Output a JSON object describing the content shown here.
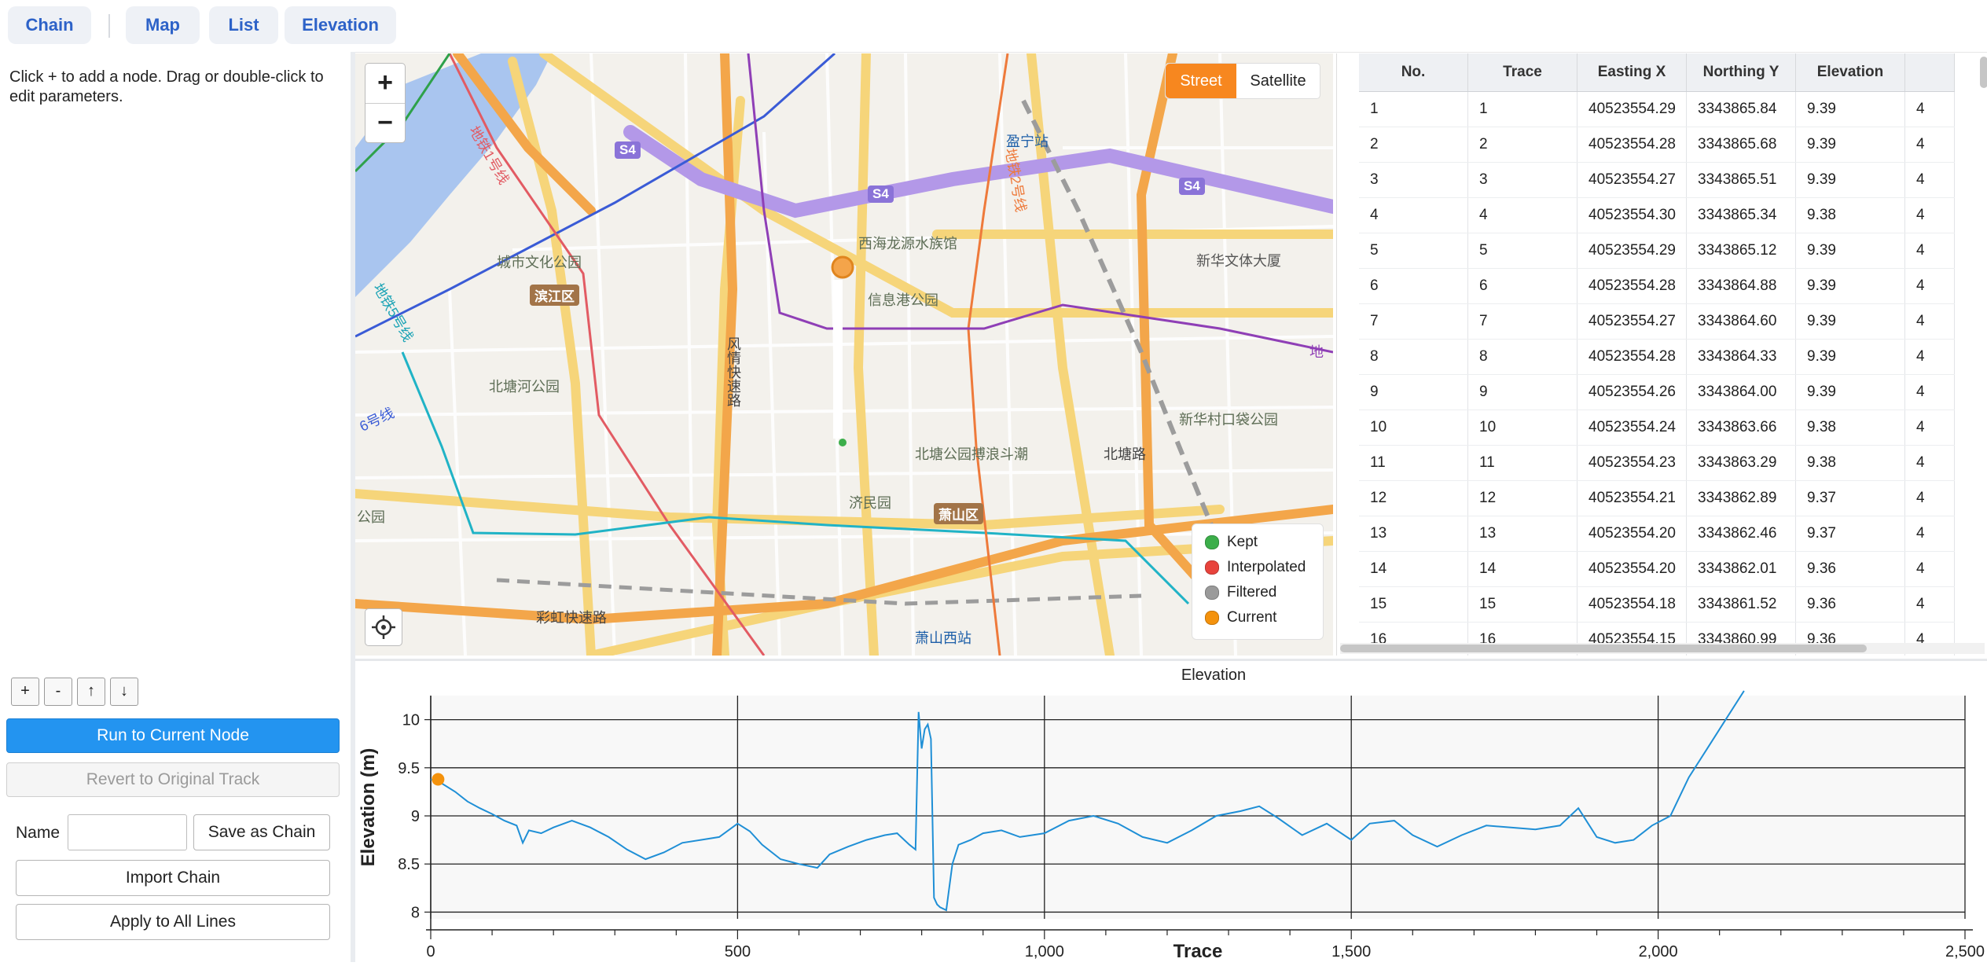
{
  "tabs": [
    {
      "label": "Chain"
    },
    {
      "label": "Map"
    },
    {
      "label": "List"
    },
    {
      "label": "Elevation"
    }
  ],
  "left": {
    "hint": "Click + to add a node. Drag or double-click to edit parameters.",
    "node_buttons": {
      "add": "+",
      "remove": "-",
      "up": "↑",
      "down": "↓"
    },
    "run_label": "Run to Current Node",
    "revert_label": "Revert to Original Track",
    "name_label": "Name",
    "name_value": "",
    "save_label": "Save as Chain",
    "import_label": "Import Chain",
    "apply_label": "Apply to All Lines"
  },
  "map": {
    "zoom_in": "+",
    "zoom_out": "−",
    "layer_street": "Street",
    "layer_satellite": "Satellite",
    "legend": [
      {
        "label": "Kept",
        "color": "#3cae4a"
      },
      {
        "label": "Interpolated",
        "color": "#e8433c"
      },
      {
        "label": "Filtered",
        "color": "#9a9a9a"
      },
      {
        "label": "Current",
        "color": "#f4920c"
      }
    ],
    "labels": {
      "yingning": "盈宁站",
      "xihai": "西海龙源水族馆",
      "chengshi": "城市文化公园",
      "xinxigang": "信息港公园",
      "xinhua_tower": "新华文体大厦",
      "binjiang": "滨江区",
      "beitang": "北塘河公园",
      "xinhua_park": "新华村口袋公园",
      "beitang_park": "北塘公园搏浪斗潮",
      "beitang_road": "北塘路",
      "jimin": "济民园",
      "xiaoshan": "萧山区",
      "caihong": "彩虹快速路",
      "xiaoshan_west": "萧山西站",
      "fengqing": "风情快速路",
      "park_w": "公园",
      "s4_a": "S4",
      "s4_b": "S4",
      "s4_c": "S4",
      "line5": "地铁5号线",
      "line6": "6号线",
      "line1": "地铁1号线",
      "line2": "地铁2号线",
      "line_e": "地"
    }
  },
  "table": {
    "headers": [
      "No.",
      "Trace",
      "Easting X",
      "Northing Y",
      "Elevation",
      ""
    ],
    "rows": [
      [
        "1",
        "1",
        "40523554.29",
        "3343865.84",
        "9.39",
        "4"
      ],
      [
        "2",
        "2",
        "40523554.28",
        "3343865.68",
        "9.39",
        "4"
      ],
      [
        "3",
        "3",
        "40523554.27",
        "3343865.51",
        "9.39",
        "4"
      ],
      [
        "4",
        "4",
        "40523554.30",
        "3343865.34",
        "9.38",
        "4"
      ],
      [
        "5",
        "5",
        "40523554.29",
        "3343865.12",
        "9.39",
        "4"
      ],
      [
        "6",
        "6",
        "40523554.28",
        "3343864.88",
        "9.39",
        "4"
      ],
      [
        "7",
        "7",
        "40523554.27",
        "3343864.60",
        "9.39",
        "4"
      ],
      [
        "8",
        "8",
        "40523554.28",
        "3343864.33",
        "9.39",
        "4"
      ],
      [
        "9",
        "9",
        "40523554.26",
        "3343864.00",
        "9.39",
        "4"
      ],
      [
        "10",
        "10",
        "40523554.24",
        "3343863.66",
        "9.38",
        "4"
      ],
      [
        "11",
        "11",
        "40523554.23",
        "3343863.29",
        "9.38",
        "4"
      ],
      [
        "12",
        "12",
        "40523554.21",
        "3343862.89",
        "9.37",
        "4"
      ],
      [
        "13",
        "13",
        "40523554.20",
        "3343862.46",
        "9.37",
        "4"
      ],
      [
        "14",
        "14",
        "40523554.20",
        "3343862.01",
        "9.36",
        "4"
      ],
      [
        "15",
        "15",
        "40523554.18",
        "3343861.52",
        "9.36",
        "4"
      ],
      [
        "16",
        "16",
        "40523554.15",
        "3343860.99",
        "9.36",
        "4"
      ]
    ]
  },
  "chart_data": {
    "type": "line",
    "title": "Elevation",
    "xlabel": "Trace",
    "ylabel": "Elevation (m)",
    "xlim": [
      0,
      2500
    ],
    "ylim": [
      7.93,
      10.25
    ],
    "xticks": [
      0,
      500,
      1000,
      1500,
      2000,
      2500
    ],
    "xtick_labels": [
      "0",
      "500",
      "1,000",
      "1,500",
      "2,000",
      "2,500"
    ],
    "yticks": [
      8,
      8.5,
      9,
      9.5,
      10
    ],
    "ytick_labels": [
      "8",
      "8.5",
      "9",
      "9.5",
      "10"
    ],
    "grid": true,
    "series": [
      {
        "color": "#1f8fd6",
        "x": [
          0,
          20,
          40,
          60,
          80,
          100,
          120,
          140,
          150,
          160,
          180,
          200,
          230,
          260,
          290,
          320,
          350,
          380,
          410,
          440,
          470,
          500,
          520,
          540,
          570,
          600,
          630,
          650,
          680,
          710,
          740,
          760,
          780,
          790,
          795,
          800,
          805,
          810,
          815,
          820,
          825,
          830,
          840,
          850,
          860,
          880,
          900,
          930,
          960,
          1000,
          1040,
          1080,
          1120,
          1160,
          1200,
          1240,
          1280,
          1320,
          1350,
          1380,
          1420,
          1460,
          1500,
          1530,
          1570,
          1600,
          1640,
          1680,
          1720,
          1760,
          1800,
          1840,
          1870,
          1900,
          1930,
          1960,
          1990,
          2020,
          2050,
          2080,
          2110,
          2140
        ],
        "y": [
          9.38,
          9.33,
          9.25,
          9.15,
          9.08,
          9.02,
          8.95,
          8.9,
          8.72,
          8.85,
          8.82,
          8.88,
          8.95,
          8.88,
          8.78,
          8.65,
          8.55,
          8.62,
          8.72,
          8.75,
          8.78,
          8.92,
          8.84,
          8.7,
          8.55,
          8.5,
          8.46,
          8.6,
          8.68,
          8.75,
          8.8,
          8.82,
          8.7,
          8.65,
          10.08,
          9.7,
          9.9,
          9.95,
          9.8,
          8.15,
          8.08,
          8.05,
          8.02,
          8.5,
          8.7,
          8.75,
          8.82,
          8.85,
          8.78,
          8.82,
          8.95,
          9.0,
          8.92,
          8.78,
          8.72,
          8.85,
          9.0,
          9.05,
          9.1,
          8.98,
          8.8,
          8.92,
          8.75,
          8.92,
          8.95,
          8.8,
          8.68,
          8.8,
          8.9,
          8.88,
          8.86,
          8.9,
          9.08,
          8.78,
          8.72,
          8.75,
          8.9,
          9.0,
          9.4,
          9.7,
          10.0,
          10.3
        ]
      }
    ],
    "current_point": {
      "x": 12,
      "y": 9.38,
      "color": "#f4920c"
    }
  }
}
